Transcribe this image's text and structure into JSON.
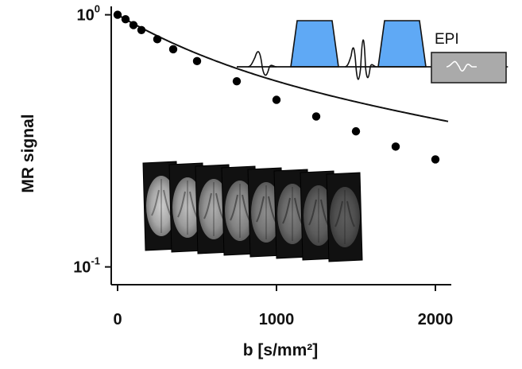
{
  "chart_data": {
    "type": "scatter",
    "xlabel": "b [s/mm²]",
    "ylabel": "MR signal",
    "x_ticks": [
      {
        "value": 0,
        "label": "0"
      },
      {
        "value": 1000,
        "label": "1000"
      },
      {
        "value": 2000,
        "label": "2000"
      }
    ],
    "y_ticks": [
      {
        "value": 1.0,
        "base": "10",
        "exp": "0"
      },
      {
        "value": 0.1,
        "base": "10",
        "exp": "-1"
      }
    ],
    "xlim": [
      -40,
      2100
    ],
    "ylim": [
      0.085,
      1.08
    ],
    "y_scale": "log",
    "grid": false,
    "points": [
      {
        "x": 0,
        "y": 1.0
      },
      {
        "x": 50,
        "y": 0.96
      },
      {
        "x": 100,
        "y": 0.91
      },
      {
        "x": 150,
        "y": 0.87
      },
      {
        "x": 250,
        "y": 0.8
      },
      {
        "x": 350,
        "y": 0.73
      },
      {
        "x": 500,
        "y": 0.655
      },
      {
        "x": 750,
        "y": 0.545
      },
      {
        "x": 1000,
        "y": 0.46
      },
      {
        "x": 1250,
        "y": 0.395
      },
      {
        "x": 1500,
        "y": 0.345
      },
      {
        "x": 1750,
        "y": 0.3
      },
      {
        "x": 2000,
        "y": 0.267
      }
    ],
    "fit_curve": {
      "model": "bi-exponential",
      "f": 0.38,
      "D1": 0.0018,
      "D2": 0.00025
    },
    "marker_color": "#000000",
    "pulse_color": "#5fa9f5",
    "readout_color": "#aaaaaa"
  },
  "inset_sequence": {
    "label": "EPI"
  },
  "image_stack": {
    "count": 8
  }
}
